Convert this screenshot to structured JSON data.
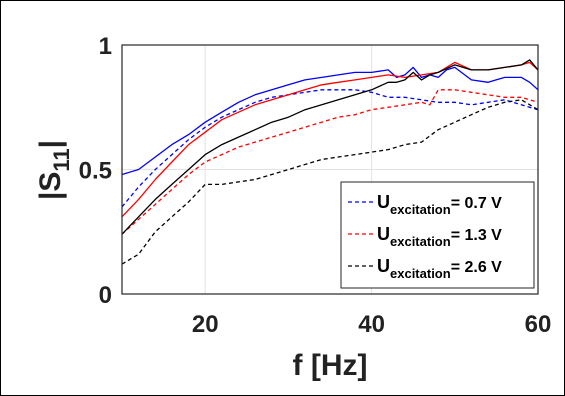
{
  "chart_data": {
    "type": "line",
    "title": "",
    "xlabel": "f [Hz]",
    "ylabel_main": "|S",
    "ylabel_sub": "11",
    "ylabel_close": "|",
    "xlim": [
      10,
      60
    ],
    "ylim": [
      0,
      1
    ],
    "xticks": [
      20,
      40,
      60
    ],
    "xtick_labels": [
      "20",
      "40",
      "60"
    ],
    "yticks": [
      0,
      0.5,
      1
    ],
    "ytick_labels": [
      "0",
      "0.5",
      "1"
    ],
    "grid": true,
    "legend_placement": "bottom-right",
    "series": [
      {
        "name": "U_excitation = 0.7 V",
        "label_main": "U",
        "label_sub": "excitation",
        "label_value": "= 0.7 V",
        "color": "#0000ff",
        "style": "dashed",
        "x": [
          10,
          12,
          14,
          16,
          18,
          20,
          22,
          24,
          26,
          28,
          30,
          32,
          34,
          36,
          38,
          40,
          42,
          44,
          46,
          48,
          50,
          52,
          54,
          56,
          58,
          60
        ],
        "y": [
          0.35,
          0.43,
          0.5,
          0.56,
          0.62,
          0.67,
          0.71,
          0.74,
          0.77,
          0.79,
          0.8,
          0.81,
          0.82,
          0.82,
          0.82,
          0.81,
          0.79,
          0.79,
          0.78,
          0.77,
          0.77,
          0.76,
          0.77,
          0.78,
          0.76,
          0.74
        ]
      },
      {
        "name": "U_excitation = 1.3 V",
        "label_main": "U",
        "label_sub": "excitation",
        "label_value": "= 1.3 V",
        "color": "#ff0000",
        "style": "dashed",
        "x": [
          10,
          12,
          14,
          16,
          18,
          20,
          22,
          24,
          26,
          28,
          30,
          32,
          34,
          36,
          38,
          40,
          42,
          44,
          46,
          47,
          48,
          50,
          52,
          54,
          56,
          58,
          60
        ],
        "y": [
          0.24,
          0.3,
          0.36,
          0.42,
          0.48,
          0.53,
          0.56,
          0.59,
          0.61,
          0.63,
          0.65,
          0.67,
          0.69,
          0.71,
          0.72,
          0.74,
          0.75,
          0.76,
          0.77,
          0.76,
          0.82,
          0.82,
          0.81,
          0.8,
          0.79,
          0.79,
          0.77
        ]
      },
      {
        "name": "U_excitation = 2.6 V",
        "label_main": "U",
        "label_sub": "excitation",
        "label_value": "= 2.6 V",
        "color": "#000000",
        "style": "dashed",
        "x": [
          10,
          12,
          14,
          16,
          18,
          20,
          22,
          24,
          26,
          28,
          30,
          32,
          34,
          36,
          38,
          40,
          42,
          44,
          46,
          48,
          50,
          52,
          54,
          56,
          58,
          60
        ],
        "y": [
          0.12,
          0.16,
          0.25,
          0.31,
          0.37,
          0.44,
          0.44,
          0.45,
          0.46,
          0.48,
          0.5,
          0.52,
          0.54,
          0.55,
          0.56,
          0.57,
          0.58,
          0.6,
          0.61,
          0.66,
          0.69,
          0.72,
          0.75,
          0.77,
          0.78,
          0.74
        ]
      },
      {
        "name": "",
        "color": "#0000ff",
        "style": "solid",
        "x": [
          10,
          12,
          14,
          16,
          18,
          20,
          22,
          24,
          26,
          28,
          30,
          32,
          34,
          36,
          38,
          40,
          42,
          43,
          44,
          45,
          46,
          47,
          48,
          49,
          50,
          52,
          54,
          56,
          58,
          59,
          60
        ],
        "y": [
          0.48,
          0.5,
          0.55,
          0.6,
          0.64,
          0.69,
          0.73,
          0.77,
          0.8,
          0.82,
          0.84,
          0.86,
          0.87,
          0.88,
          0.89,
          0.89,
          0.9,
          0.87,
          0.88,
          0.91,
          0.87,
          0.88,
          0.87,
          0.9,
          0.91,
          0.86,
          0.85,
          0.87,
          0.87,
          0.85,
          0.82
        ]
      },
      {
        "name": "",
        "color": "#ff0000",
        "style": "solid",
        "x": [
          10,
          12,
          14,
          16,
          18,
          20,
          22,
          24,
          26,
          28,
          30,
          32,
          34,
          36,
          38,
          40,
          42,
          44,
          46,
          48,
          49,
          50,
          52,
          54,
          56,
          58,
          59,
          60
        ],
        "y": [
          0.31,
          0.38,
          0.46,
          0.53,
          0.6,
          0.65,
          0.7,
          0.73,
          0.76,
          0.78,
          0.8,
          0.82,
          0.84,
          0.85,
          0.86,
          0.87,
          0.88,
          0.87,
          0.88,
          0.89,
          0.91,
          0.93,
          0.9,
          0.9,
          0.91,
          0.92,
          0.93,
          0.9
        ]
      },
      {
        "name": "",
        "color": "#000000",
        "style": "solid",
        "x": [
          10,
          12,
          14,
          16,
          18,
          20,
          22,
          24,
          26,
          28,
          30,
          32,
          34,
          36,
          38,
          40,
          42,
          43,
          44,
          45,
          46,
          47,
          48,
          50,
          52,
          54,
          56,
          58,
          59,
          60
        ],
        "y": [
          0.24,
          0.31,
          0.38,
          0.44,
          0.5,
          0.56,
          0.6,
          0.63,
          0.66,
          0.69,
          0.71,
          0.74,
          0.76,
          0.78,
          0.8,
          0.82,
          0.85,
          0.85,
          0.86,
          0.89,
          0.86,
          0.88,
          0.89,
          0.92,
          0.9,
          0.9,
          0.91,
          0.92,
          0.94,
          0.9
        ]
      }
    ]
  }
}
